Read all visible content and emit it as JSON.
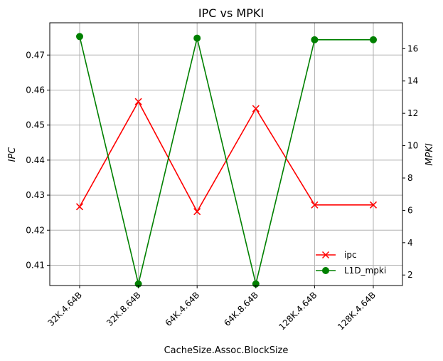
{
  "chart_data": {
    "type": "line",
    "title": "IPC vs MPKI",
    "xlabel": "CacheSize.Assoc.BlockSize",
    "ylabel_left": "IPC",
    "ylabel_right": "MPKI",
    "categories": [
      "32K.4.64B",
      "32K.8.64B",
      "64K.4.64B",
      "64K.8.64B",
      "128K.4.64B",
      "128K.4.64B"
    ],
    "ylim_left": [
      0.4042,
      0.4792
    ],
    "yticks_left": [
      "0.41",
      "0.42",
      "0.43",
      "0.44",
      "0.45",
      "0.46",
      "0.47"
    ],
    "ylim_right": [
      1.35,
      17.6
    ],
    "yticks_right": [
      "2",
      "4",
      "6",
      "8",
      "10",
      "12",
      "14",
      "16"
    ],
    "grid": true,
    "legend_position": "lower-right",
    "series": [
      {
        "name": "ipc",
        "axis": "left",
        "color": "#ff0000",
        "marker": "x",
        "values": [
          0.4267,
          0.4567,
          0.4253,
          0.4547,
          0.4272,
          0.4272
        ]
      },
      {
        "name": "L1D_mpki",
        "axis": "right",
        "color": "#008000",
        "marker": "circle",
        "values": [
          16.75,
          1.45,
          16.65,
          1.45,
          16.55,
          16.55
        ]
      }
    ]
  }
}
